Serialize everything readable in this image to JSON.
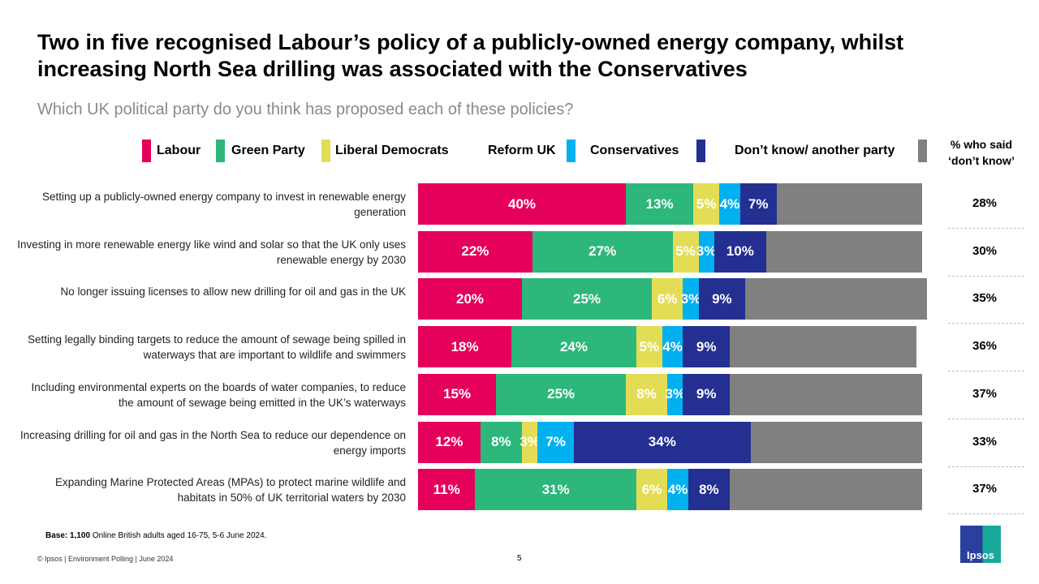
{
  "title": "Two in five recognised Labour’s policy of a publicly-owned energy company, whilst increasing North Sea drilling was associated with the Conservatives",
  "chart_data": {
    "type": "bar",
    "orientation": "horizontal-stacked-100",
    "subtitle": "Which UK political party do you think has proposed each of these policies?",
    "categories": [
      "Setting up a publicly-owned energy company to invest in renewable energy generation",
      "Investing in more renewable energy like wind and solar so that the UK only uses renewable energy by 2030",
      "No longer issuing licenses to allow new drilling for oil and gas in the UK",
      "Setting legally binding targets to reduce the amount of sewage being spilled in waterways that are important to wildlife and swimmers",
      "Including environmental experts on the boards of water companies, to reduce the amount of sewage being emitted in the UK’s waterways",
      "Increasing drilling for oil and gas in the North Sea to reduce our dependence on energy imports",
      "Expanding Marine Protected Areas (MPAs) to protect marine wildlife and habitats in 50% of UK territorial waters by 2030"
    ],
    "series": [
      {
        "name": "Labour",
        "color": "#e4005b",
        "values": [
          40,
          22,
          20,
          18,
          15,
          12,
          11
        ]
      },
      {
        "name": "Green Party",
        "color": "#2db77a",
        "values": [
          13,
          27,
          25,
          24,
          25,
          8,
          31
        ]
      },
      {
        "name": "Liberal Democrats",
        "color": "#e3dd56",
        "values": [
          5,
          5,
          6,
          5,
          8,
          3,
          6
        ]
      },
      {
        "name": "Reform UK",
        "color": "#00b0ef",
        "values": [
          4,
          3,
          3,
          4,
          3,
          7,
          4
        ]
      },
      {
        "name": "Conservatives",
        "color": "#232f91",
        "values": [
          7,
          10,
          9,
          9,
          9,
          34,
          8
        ]
      },
      {
        "name": "Don’t know/ another party",
        "color": "#808080",
        "values": [
          28,
          30,
          35,
          36,
          37,
          33,
          37
        ]
      }
    ],
    "dk_header": "% who said ‘don’t know’",
    "dk_labels": [
      "28%",
      "30%",
      "35%",
      "36%",
      "37%",
      "33%",
      "37%"
    ],
    "legend_position": "top",
    "xlim": [
      0,
      100
    ]
  },
  "footer": {
    "base_bold": "Base: 1,100",
    "base_rest": " Online British adults aged 16-75, 5-6 June 2024.",
    "copyright": "© Ipsos | Environment Polling | June 2024",
    "page": "5",
    "logo": "Ipsos"
  }
}
